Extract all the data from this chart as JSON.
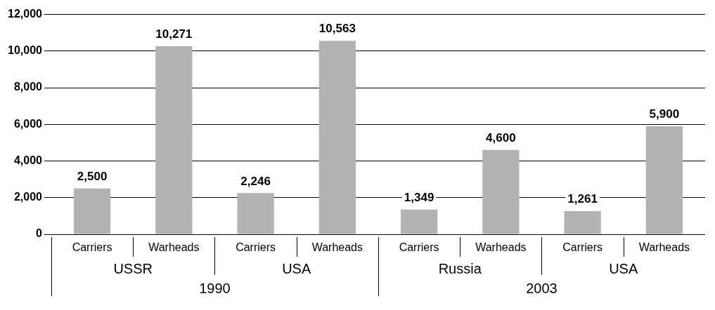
{
  "chart_data": {
    "type": "bar",
    "categories": [
      "Carriers",
      "Warheads",
      "Carriers",
      "Warheads",
      "Carriers",
      "Warheads",
      "Carriers",
      "Warheads"
    ],
    "values": [
      2500,
      10271,
      2246,
      10563,
      1349,
      4600,
      1261,
      5900
    ],
    "value_labels": [
      "2,500",
      "10,271",
      "2,246",
      "10,563",
      "1,349",
      "4,600",
      "1,261",
      "5,900"
    ],
    "color": "#b3b3b3",
    "ylim": [
      0,
      12000
    ],
    "yticks": [
      {
        "value": 0,
        "label": "0"
      },
      {
        "value": 2000,
        "label": "2,000"
      },
      {
        "value": 4000,
        "label": "4,000"
      },
      {
        "value": 6000,
        "label": "6,000"
      },
      {
        "value": 8000,
        "label": "8,000"
      },
      {
        "value": 10000,
        "label": "10,000"
      },
      {
        "value": 12000,
        "label": "12,000"
      }
    ],
    "grid": "y",
    "legend": false,
    "annotations": [
      "USSR",
      "USA",
      "Russia",
      "USA",
      "1990",
      "2003"
    ]
  }
}
